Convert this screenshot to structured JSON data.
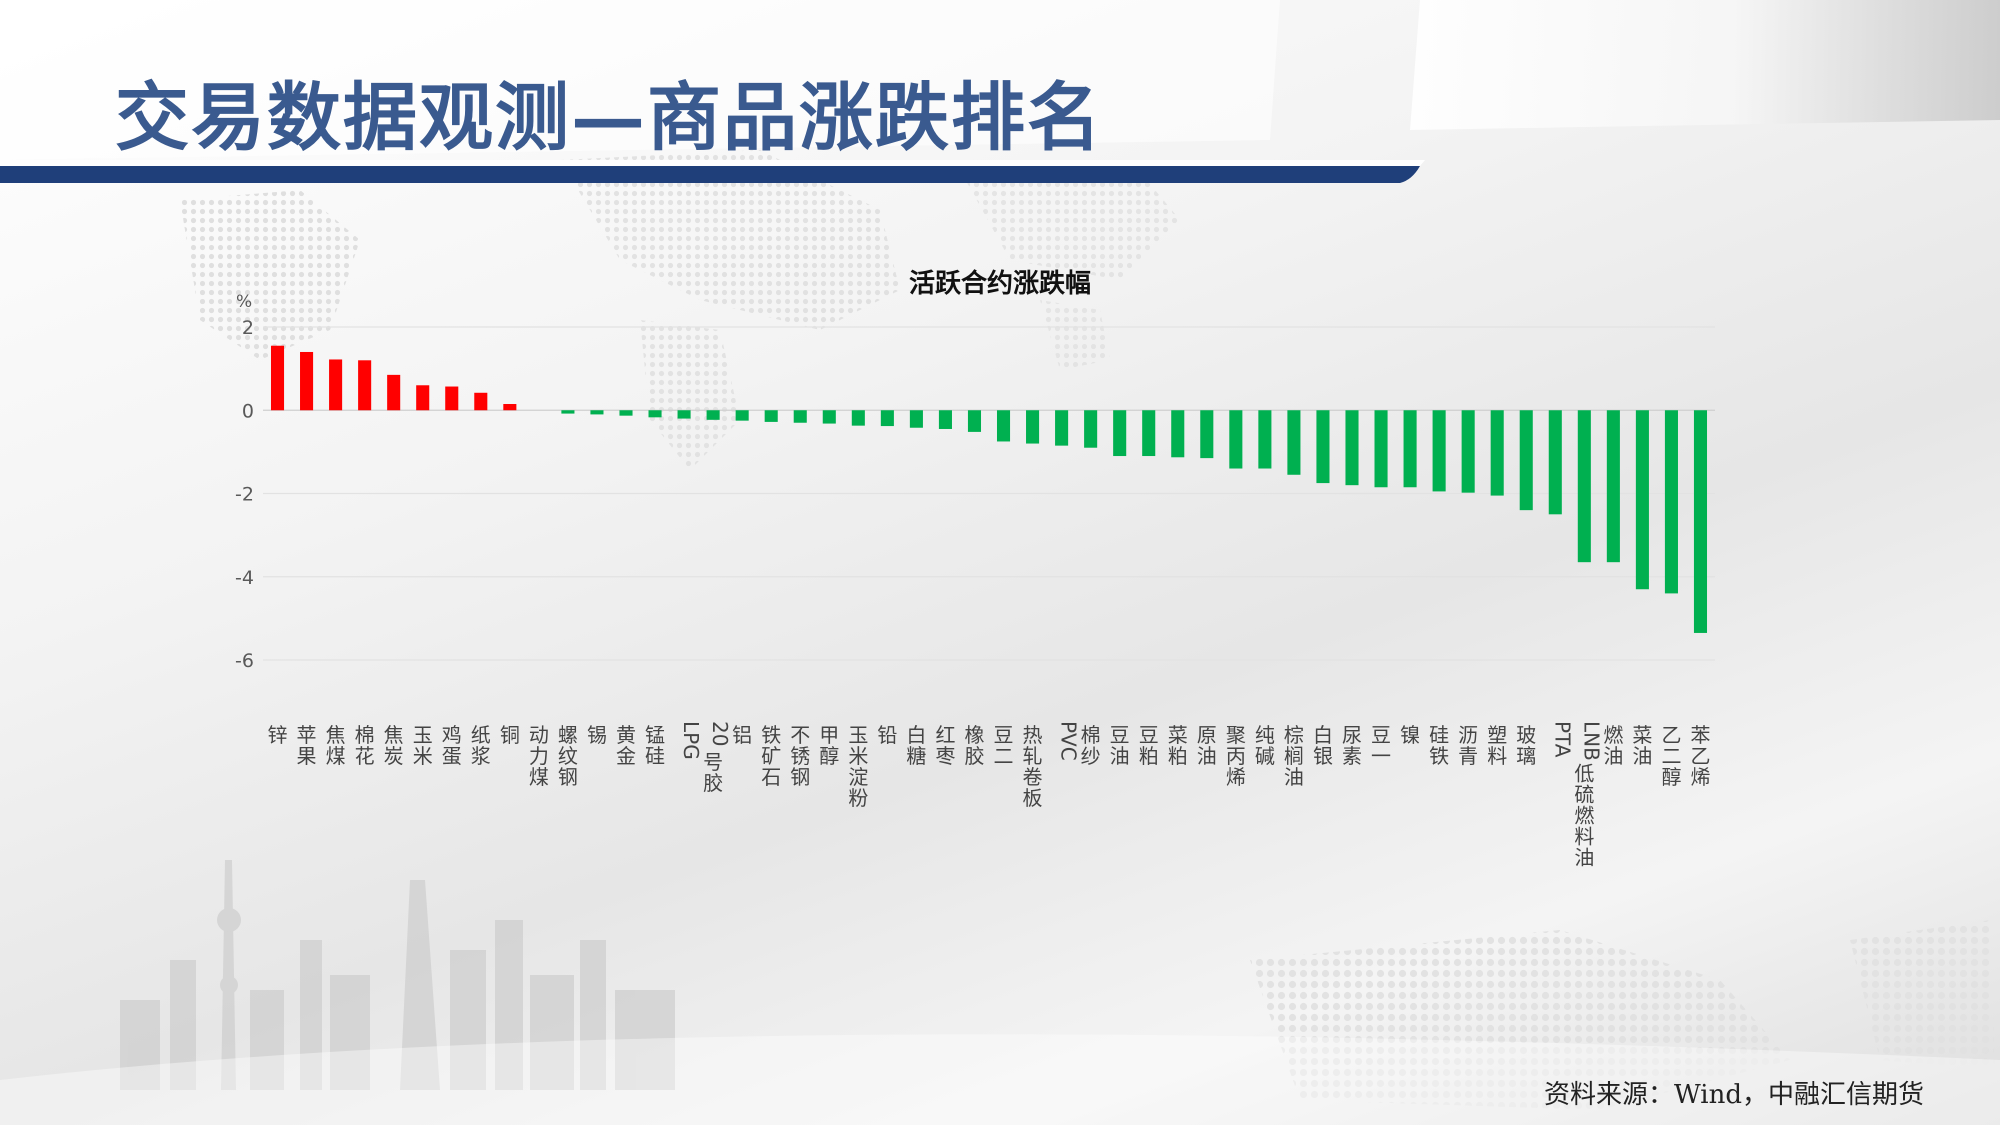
{
  "header": {
    "title": "交易数据观测—商品涨跌排名"
  },
  "footer": {
    "source": "资料来源：Wind，中融汇信期货"
  },
  "colors": {
    "up": "#ff0000",
    "down": "#00b050",
    "accent_band": "#1f3f7a",
    "title": "#3a5a8f"
  },
  "chart_data": {
    "type": "bar",
    "title": "活跃合约涨跌幅",
    "ylabel": "%",
    "xlabel": "",
    "ylim": [
      -6,
      2
    ],
    "yticks": [
      2,
      0,
      -2,
      -4,
      -6
    ],
    "grid": true,
    "legend": "none",
    "categories": [
      "锌",
      "苹果",
      "焦煤",
      "棉花",
      "焦炭",
      "玉米",
      "鸡蛋",
      "纸浆",
      "铜",
      "动力煤",
      "螺纹钢",
      "锡",
      "黄金",
      "锰硅",
      "LPG",
      "20号胶",
      "铝",
      "铁矿石",
      "不锈钢",
      "甲醇",
      "玉米淀粉",
      "铅",
      "白糖",
      "红枣",
      "橡胶",
      "豆二",
      "热轧卷板",
      "PVC",
      "棉纱",
      "豆油",
      "豆粕",
      "菜粕",
      "原油",
      "聚丙烯",
      "纯碱",
      "棕榈油",
      "白银",
      "尿素",
      "豆一",
      "镍",
      "硅铁",
      "沥青",
      "塑料",
      "玻璃",
      "PTA",
      "LNB低硫燃料油",
      "燃油",
      "菜油",
      "乙二醇",
      "苯乙烯"
    ],
    "values": [
      1.55,
      1.4,
      1.22,
      1.2,
      0.85,
      0.6,
      0.57,
      0.42,
      0.15,
      0.0,
      -0.08,
      -0.1,
      -0.13,
      -0.17,
      -0.2,
      -0.23,
      -0.25,
      -0.28,
      -0.3,
      -0.32,
      -0.37,
      -0.38,
      -0.42,
      -0.45,
      -0.52,
      -0.75,
      -0.8,
      -0.85,
      -0.9,
      -1.1,
      -1.1,
      -1.13,
      -1.15,
      -1.4,
      -1.4,
      -1.55,
      -1.75,
      -1.8,
      -1.85,
      -1.85,
      -1.95,
      -1.98,
      -2.05,
      -2.4,
      -2.5,
      -3.65,
      -3.65,
      -4.3,
      -4.4,
      -5.35
    ]
  }
}
